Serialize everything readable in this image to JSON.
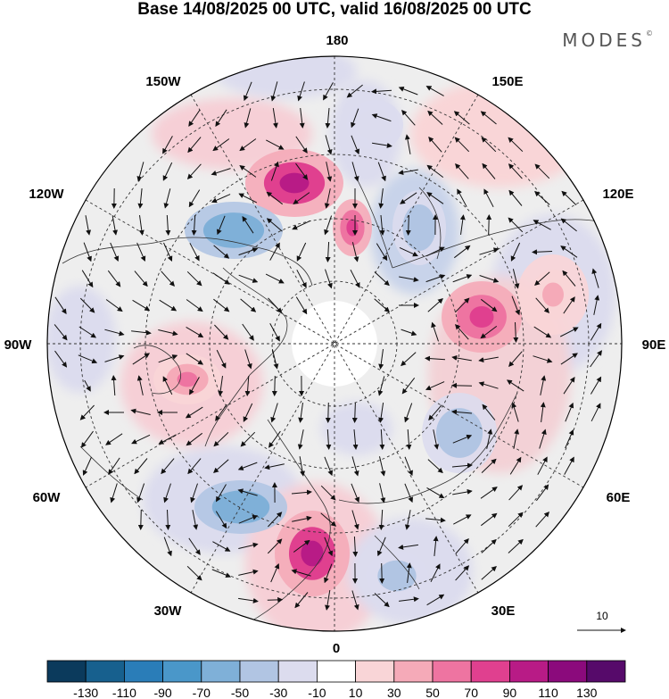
{
  "title": "Base 14/08/2025 00 UTC, valid 16/08/2025 00 UTC",
  "brand": "MODES",
  "brand_mark": "©",
  "map": {
    "labels": {
      "lon_180": "180",
      "lon_150w": "150W",
      "lon_150e": "150E",
      "lon_120w": "120W",
      "lon_120e": "120E",
      "lon_90w": "90W",
      "lon_90e": "90E",
      "lon_60w": "60W",
      "lon_60e": "60E",
      "lon_30w": "30W",
      "lon_30e": "30E",
      "lon_0": "0"
    },
    "wind_reference": "10",
    "anomaly_centers": [
      {
        "name": "pos-a",
        "value": 90
      },
      {
        "name": "neg-b",
        "value": -70
      },
      {
        "name": "pos-c",
        "value": 70
      },
      {
        "name": "neg-d",
        "value": -50
      },
      {
        "name": "pos-e",
        "value": 50
      },
      {
        "name": "neg-f",
        "value": -50
      },
      {
        "name": "pos-g",
        "value": 70
      },
      {
        "name": "neg-h",
        "value": -70
      },
      {
        "name": "pos-i",
        "value": 90
      },
      {
        "name": "neg-j",
        "value": -50
      },
      {
        "name": "neg-k",
        "value": -30
      },
      {
        "name": "pos-l",
        "value": 30
      }
    ]
  },
  "colorbar": {
    "colors": [
      "#0b3a5c",
      "#17608e",
      "#2a7db8",
      "#4a97c9",
      "#7fb0d8",
      "#b1c5e3",
      "#dcdcee",
      "#ffffff",
      "#f9d5d7",
      "#f5aab8",
      "#ee74a1",
      "#e0408f",
      "#b81b86",
      "#8b0a7c",
      "#560a6a"
    ],
    "labels": [
      "-130",
      "-110",
      "-90",
      "-70",
      "-50",
      "-30",
      "-10",
      "10",
      "30",
      "50",
      "70",
      "90",
      "110",
      "130"
    ]
  }
}
